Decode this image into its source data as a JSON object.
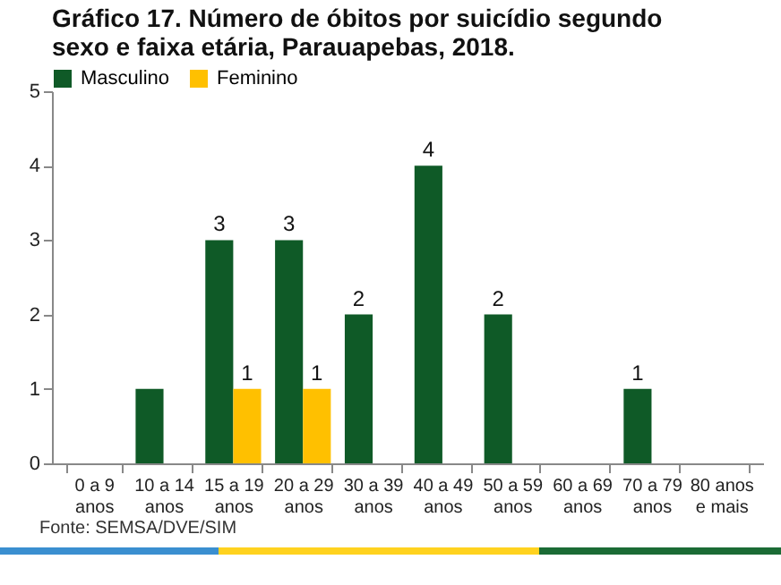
{
  "chart_data": {
    "type": "bar",
    "title": "Gráfico 17. Número de óbitos por suicídio segundo sexo e faixa etária, Parauapebas, 2018.",
    "categories": [
      "0 a 9 anos",
      "10 a 14 anos",
      "15 a 19 anos",
      "20 a 29 anos",
      "30 a 39 anos",
      "40 a 49 anos",
      "50 a 59 anos",
      "60 a 69 anos",
      "70 a 79 anos",
      "80 anos e mais"
    ],
    "series": [
      {
        "name": "Masculino",
        "color": "#0f5a27",
        "values": [
          0,
          1,
          3,
          3,
          2,
          4,
          2,
          0,
          1,
          0
        ],
        "value_labels": [
          null,
          null,
          "3",
          "3",
          "2",
          "4",
          "2",
          null,
          "1",
          null
        ]
      },
      {
        "name": "Feminino",
        "color": "#ffc000",
        "values": [
          0,
          0,
          1,
          1,
          0,
          0,
          0,
          0,
          0,
          0
        ],
        "value_labels": [
          null,
          null,
          "1",
          "1",
          null,
          null,
          null,
          null,
          null,
          null
        ]
      }
    ],
    "ylim": [
      0,
      5
    ],
    "yticks": [
      0,
      1,
      2,
      3,
      4,
      5
    ],
    "grid": false,
    "legend": "top",
    "annotations": [
      "Fonte: SEMSA/DVE/SIM"
    ]
  }
}
